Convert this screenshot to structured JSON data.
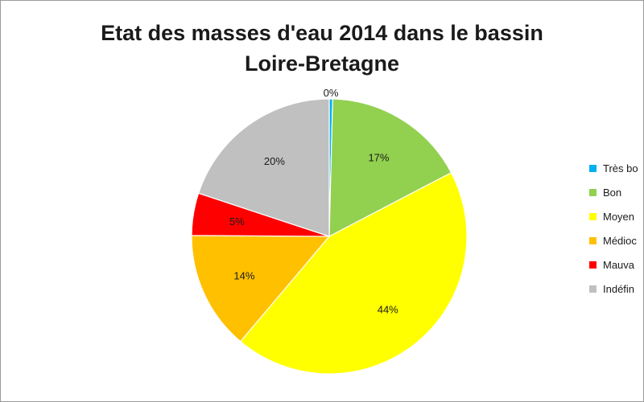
{
  "chart_data": {
    "type": "pie",
    "title_lines": [
      "Etat des masses d'eau 2014 dans le bassin",
      "Loire-Bretagne"
    ],
    "labels": [
      "Très bon",
      "Bon",
      "Moyen",
      "Médiocre",
      "Mauvais",
      "Indéfini"
    ],
    "legend_visible": [
      "Très bo",
      "Bon",
      "Moyen",
      "Médioc",
      "Mauva",
      "Indéfin"
    ],
    "values": [
      0.4,
      17,
      44,
      14,
      5,
      20
    ],
    "data_labels": [
      "0%",
      "17%",
      "44%",
      "14%",
      "5%",
      "20%"
    ],
    "colors": [
      "#00b0f0",
      "#92d050",
      "#ffff00",
      "#ffc000",
      "#ff0000",
      "#c0c0c0"
    ],
    "legend_position": "right"
  }
}
